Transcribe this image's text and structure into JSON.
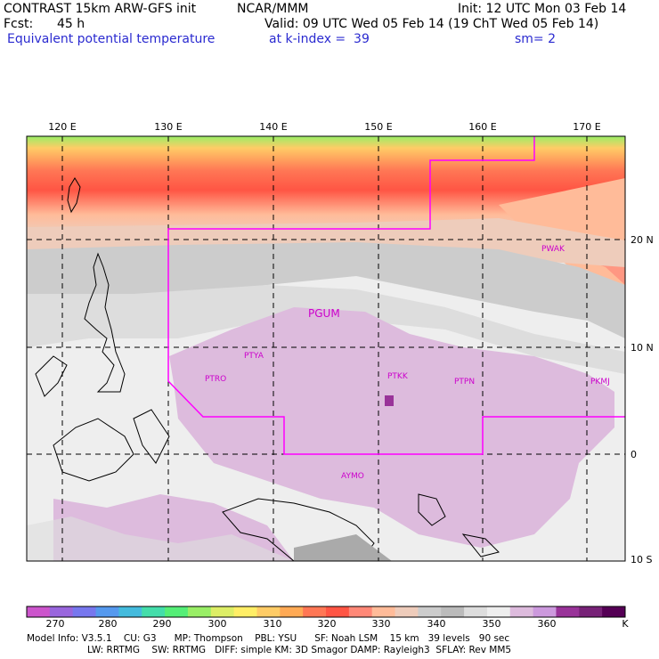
{
  "header": {
    "model": "CONTRAST 15km ARW-GFS init",
    "org": "NCAR/MMM",
    "init": "Init: 12 UTC Mon 03 Feb 14",
    "fcst_label": "Fcst:",
    "fcst_value": "45 h",
    "valid": "Valid: 09 UTC Wed 05 Feb 14 (19 ChT Wed 05 Feb 14)",
    "field": "Equivalent potential temperature",
    "level": "at k-index =  39",
    "smooth": "sm= 2"
  },
  "map": {
    "lon_labels": [
      "120 E",
      "130 E",
      "140 E",
      "150 E",
      "160 E",
      "170 E"
    ],
    "lat_labels": [
      "20 N",
      "10 N",
      "0",
      "10 S"
    ],
    "stations": [
      {
        "id": "PGUM",
        "label": "PGUM"
      },
      {
        "id": "PTYA",
        "label": "PTYA"
      },
      {
        "id": "PTRO",
        "label": "PTRO"
      },
      {
        "id": "PTKK",
        "label": "PTKK"
      },
      {
        "id": "PTPN",
        "label": "PTPN"
      },
      {
        "id": "PKMJ",
        "label": "PKMJ"
      },
      {
        "id": "PWAK",
        "label": "PWAK"
      },
      {
        "id": "AYMO",
        "label": "AYMO"
      }
    ],
    "colors": {
      "boundary": "#ff00ff",
      "grid": "#000000"
    }
  },
  "colorbar": {
    "unit": "K",
    "labels": [
      "270",
      "280",
      "290",
      "300",
      "310",
      "320",
      "330",
      "340",
      "350",
      "360"
    ],
    "swatches": [
      "#cc55cc",
      "#9966dd",
      "#7777ee",
      "#5599ee",
      "#44bbdd",
      "#44ddaa",
      "#55ee77",
      "#99ee66",
      "#ddee66",
      "#ffee66",
      "#ffcc66",
      "#ffaa55",
      "#ff7755",
      "#ff5544",
      "#ff8877",
      "#ffbb99",
      "#eeccbb",
      "#cccccc",
      "#bbbbbb",
      "#dddddd",
      "#eeeeee",
      "#ddbbdd",
      "#cc99dd",
      "#993399",
      "#772277",
      "#550055"
    ]
  },
  "info": {
    "line1": "Model Info: V3.5.1    CU: G3      MP: Thompson    PBL: YSU      SF: Noah LSM    15 km   39 levels   90 sec",
    "line2": "LW: RRTMG    SW: RRTMG   DIFF: simple KM: 3D Smagor DAMP: Rayleigh3  SFLAY: Rev MM5"
  }
}
